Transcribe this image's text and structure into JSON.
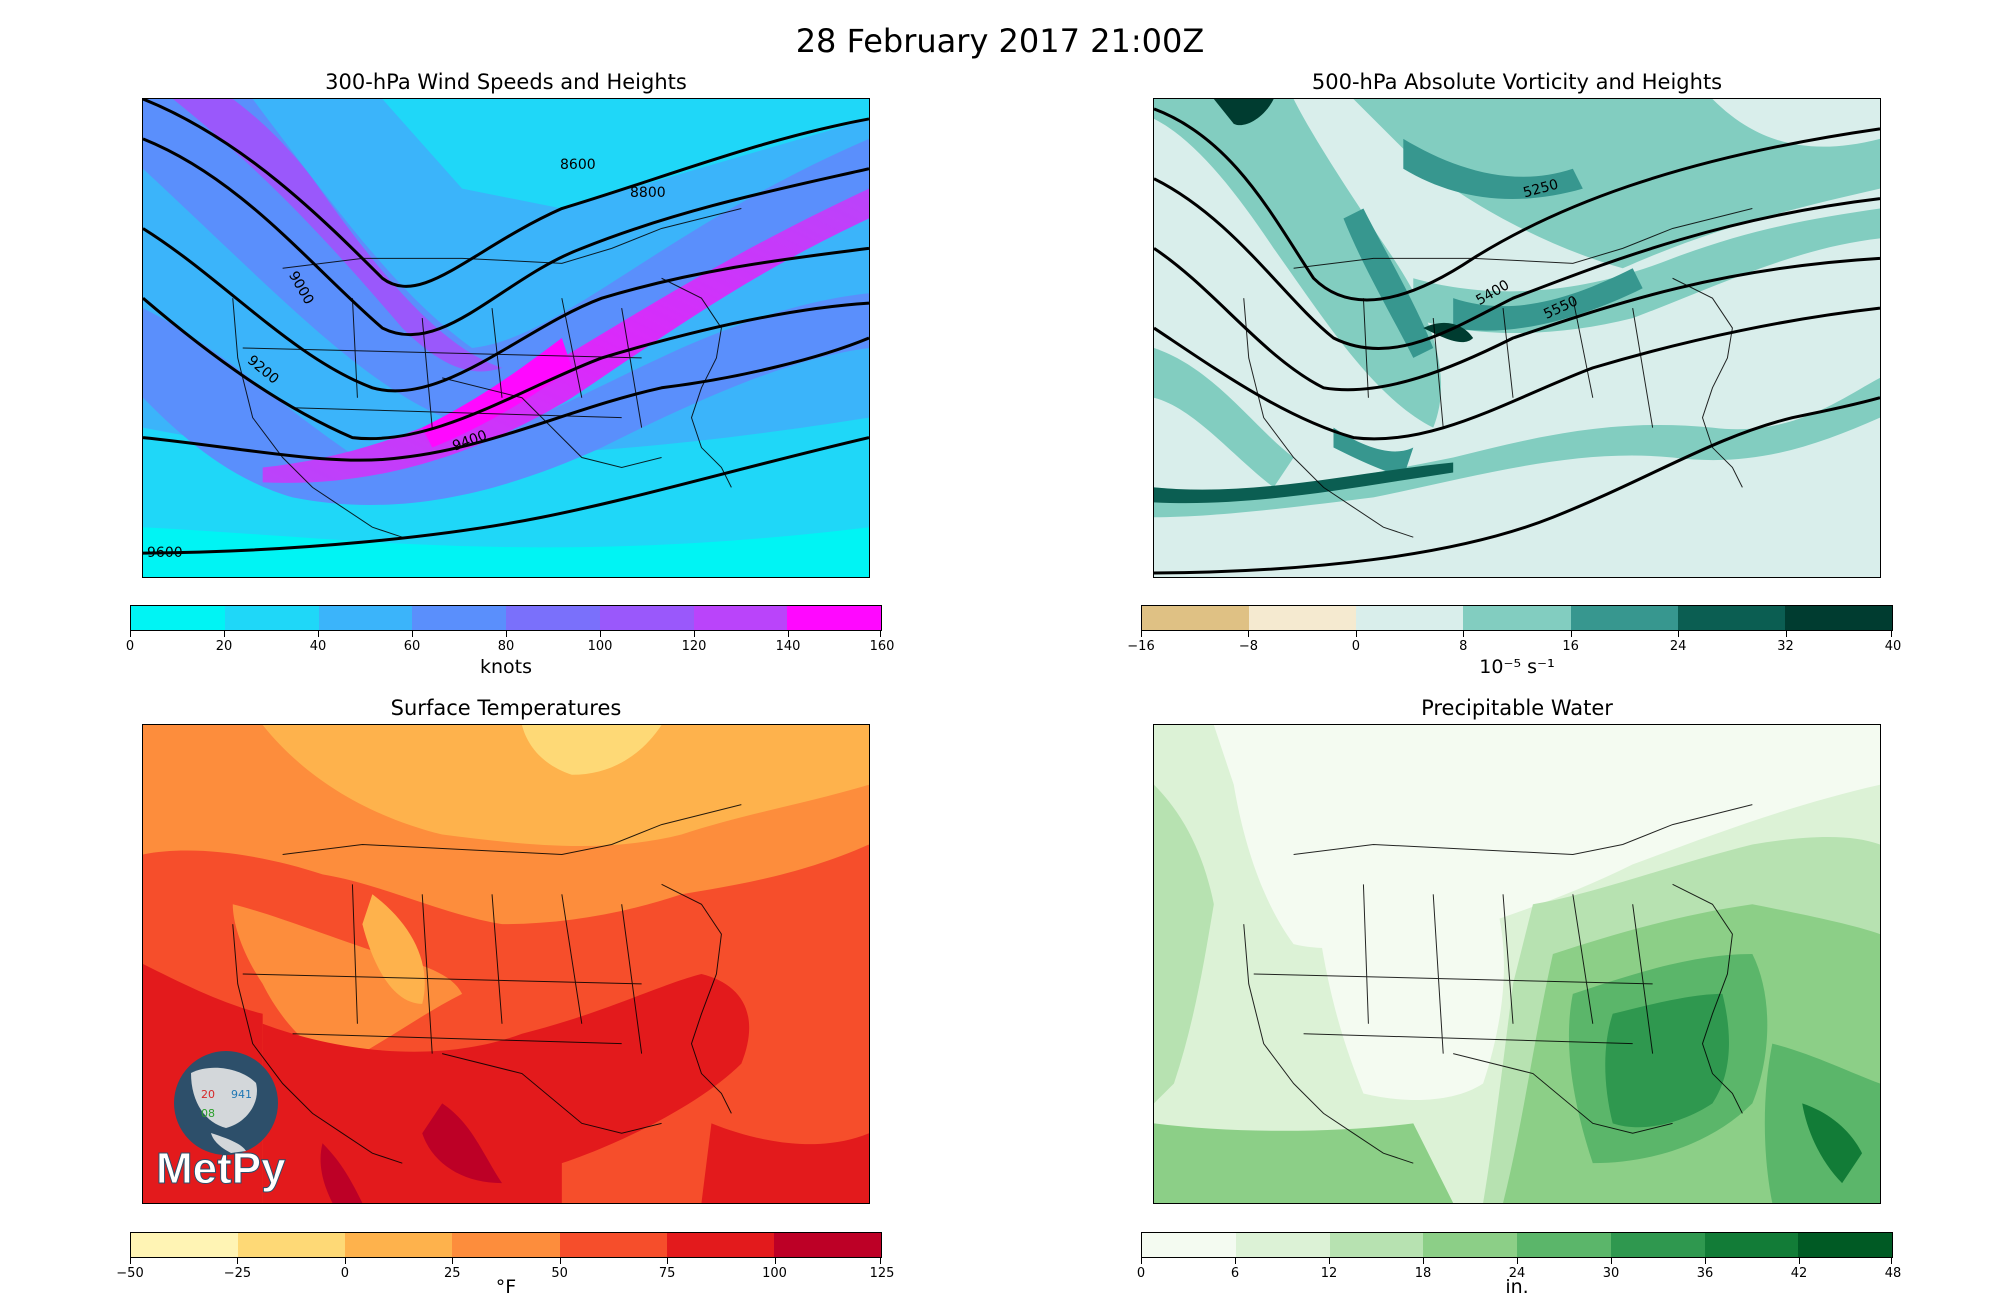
{
  "figure": {
    "title": "28 February 2017 21:00Z"
  },
  "panels": [
    {
      "title": "300-hPa Wind Speeds and Heights",
      "colorbar": {
        "label": "knots",
        "colors": [
          "#00f4f4",
          "#1fd7f8",
          "#3bb4fa",
          "#5a8ffc",
          "#7a70fb",
          "#9a58fb",
          "#ba44fa",
          "#dc28fa",
          "#ff08ff"
        ],
        "ticks": [
          "0",
          "20",
          "40",
          "60",
          "80",
          "100",
          "120",
          "140",
          "160"
        ]
      },
      "contour_labels": [
        "8600",
        "8800",
        "9000",
        "9200",
        "9400",
        "9600"
      ]
    },
    {
      "title": "500-hPa Absolute Vorticity and Heights",
      "colorbar": {
        "label": "10⁻⁵ s⁻¹",
        "colors": [
          "#dfc184",
          "#f5ead0",
          "#d9eeeb",
          "#82cdc0",
          "#37978f",
          "#0b5e52",
          "#003c30"
        ],
        "ticks": [
          "−16",
          "−8",
          "0",
          "8",
          "16",
          "24",
          "32",
          "40"
        ]
      },
      "contour_labels": [
        "5250",
        "5400",
        "5550"
      ]
    },
    {
      "title": "Surface Temperatures",
      "colorbar": {
        "label": "°F",
        "colors": [
          "#fff4b4",
          "#fed976",
          "#feb24c",
          "#fd8d3c",
          "#f64e2b",
          "#e31a1c",
          "#bd0026"
        ],
        "ticks": [
          "−50",
          "−25",
          "0",
          "25",
          "50",
          "75",
          "100",
          "125"
        ]
      }
    },
    {
      "title": "Precipitable Water",
      "colorbar": {
        "label": "in.",
        "colors": [
          "#f4fbf1",
          "#dcf2d6",
          "#b7e2b1",
          "#8ccf87",
          "#5bb66a",
          "#2f984f",
          "#127c37",
          "#005a24"
        ],
        "ticks": [
          "0",
          "6",
          "12",
          "18",
          "24",
          "30",
          "36",
          "42",
          "48"
        ]
      }
    }
  ],
  "logo": {
    "text": "MetPy",
    "station_values": [
      "20",
      "941",
      "08"
    ],
    "icon": "metpy-logo-icon"
  }
}
